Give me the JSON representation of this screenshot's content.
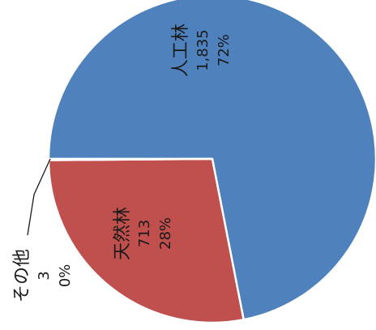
{
  "chart_data": {
    "type": "pie",
    "orientation": "rotated 90° clockwise (labels read bottom-to-top)",
    "slices": [
      {
        "label": "人工林",
        "value": 1835,
        "value_text": "1,835",
        "percent_text": "72%",
        "color": "#4f81bd"
      },
      {
        "label": "天然林",
        "value": 713,
        "value_text": "713",
        "percent_text": "28%",
        "color": "#c0504d"
      },
      {
        "label": "その他",
        "value": 3,
        "value_text": "3",
        "percent_text": "0%",
        "color": "#9bbb59"
      }
    ]
  }
}
